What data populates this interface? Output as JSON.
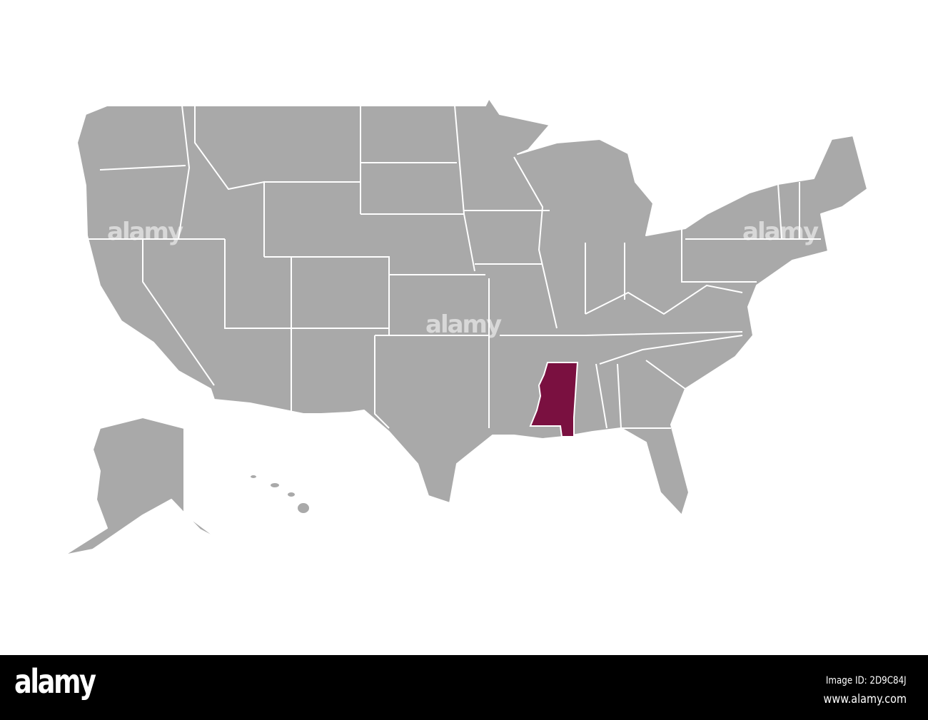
{
  "map": {
    "highlighted_state": "Mississippi",
    "colors": {
      "land": "#a9a9a9",
      "highlight": "#7a1040",
      "borders": "#ffffff",
      "background": "#ffffff"
    }
  },
  "watermark": "alamy",
  "footer": {
    "logo": "alamy",
    "image_id": "Image ID: 2D9C84J",
    "website": "www.alamy.com"
  }
}
